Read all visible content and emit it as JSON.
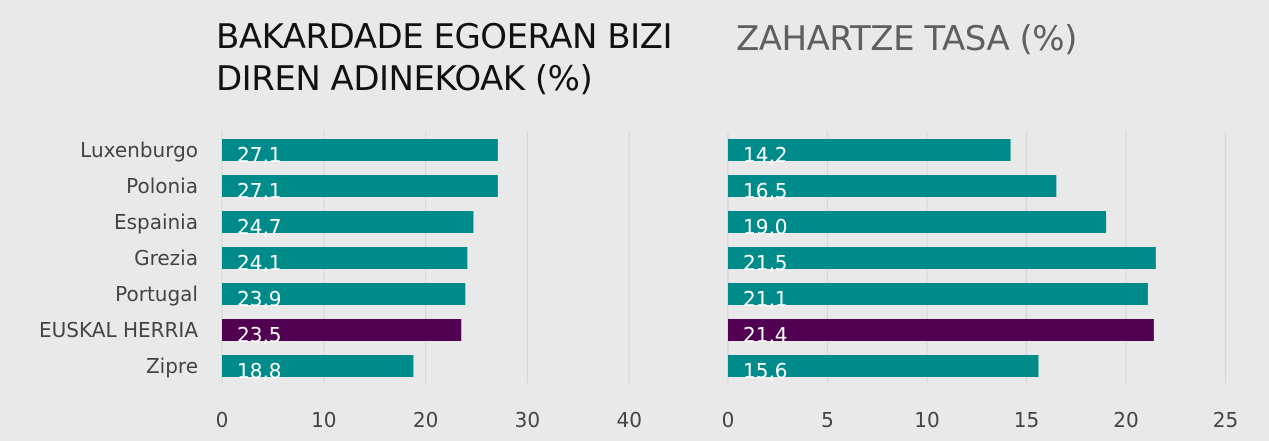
{
  "categories": [
    "Luxenburgo",
    "Polonia",
    "Espainia",
    "Grezia",
    "Portugal",
    "EUSKAL HERRIA",
    "Zipre"
  ],
  "colors": {
    "bar": "#008b8b",
    "highlight": "#520052",
    "grid": "#d6d6d6",
    "label": "#ffffff",
    "axis_text": "#444444"
  },
  "chart_data": [
    {
      "type": "bar",
      "orientation": "horizontal",
      "title": "BAKARDADE EGOERAN BIZI DIREN ADINEKOAK (%)",
      "title_lines": [
        "BAKARDADE EGOERAN BIZI",
        "DIREN ADINEKOAK (%)"
      ],
      "categories": [
        "Luxenburgo",
        "Polonia",
        "Espainia",
        "Grezia",
        "Portugal",
        "EUSKAL HERRIA",
        "Zipre"
      ],
      "values": [
        27.1,
        27.1,
        24.7,
        24.1,
        23.9,
        23.5,
        18.8
      ],
      "value_labels": [
        "27,1",
        "27,1",
        "24,7",
        "24,1",
        "23,9",
        "23,5",
        "18,8"
      ],
      "highlight": "EUSKAL HERRIA",
      "xlim": [
        0,
        40
      ],
      "ticks": [
        0,
        10,
        20,
        30,
        40
      ],
      "grid": true
    },
    {
      "type": "bar",
      "orientation": "horizontal",
      "title": "ZAHARTZE TASA (%)",
      "categories": [
        "Luxenburgo",
        "Polonia",
        "Espainia",
        "Grezia",
        "Portugal",
        "EUSKAL HERRIA",
        "Zipre"
      ],
      "values": [
        14.2,
        16.5,
        19.0,
        21.5,
        21.1,
        21.4,
        15.6
      ],
      "value_labels": [
        "14,2",
        "16,5",
        "19,0",
        "21,5",
        "21,1",
        "21,4",
        "15,6"
      ],
      "highlight": "EUSKAL HERRIA",
      "xlim": [
        0,
        25
      ],
      "ticks": [
        0,
        5,
        10,
        15,
        20,
        25
      ],
      "grid": true
    }
  ]
}
